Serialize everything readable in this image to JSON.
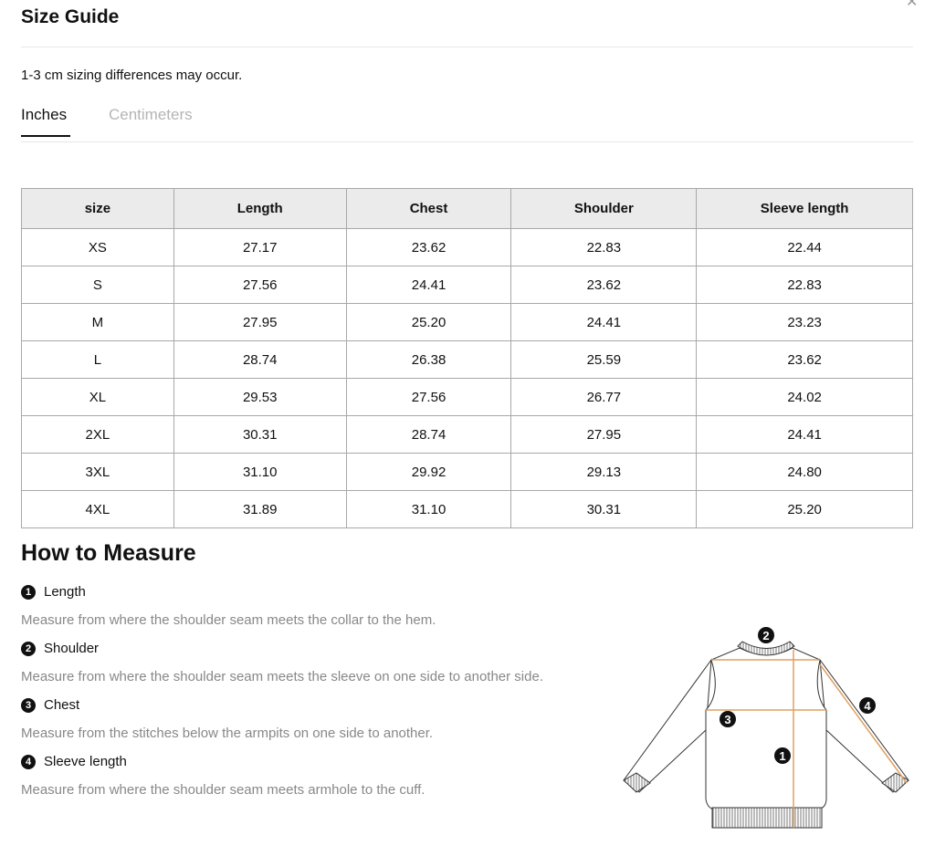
{
  "header": {
    "title": "Size Guide",
    "close_icon": "close-icon"
  },
  "note": "1-3 cm sizing differences may occur.",
  "tabs": [
    {
      "label": "Inches",
      "active": true
    },
    {
      "label": "Centimeters",
      "active": false
    }
  ],
  "table": {
    "headers": [
      "size",
      "Length",
      "Chest",
      "Shoulder",
      "Sleeve length"
    ],
    "rows": [
      [
        "XS",
        "27.17",
        "23.62",
        "22.83",
        "22.44"
      ],
      [
        "S",
        "27.56",
        "24.41",
        "23.62",
        "22.83"
      ],
      [
        "M",
        "27.95",
        "25.20",
        "24.41",
        "23.23"
      ],
      [
        "L",
        "28.74",
        "26.38",
        "25.59",
        "23.62"
      ],
      [
        "XL",
        "29.53",
        "27.56",
        "26.77",
        "24.02"
      ],
      [
        "2XL",
        "30.31",
        "28.74",
        "27.95",
        "24.41"
      ],
      [
        "3XL",
        "31.10",
        "29.92",
        "29.13",
        "24.80"
      ],
      [
        "4XL",
        "31.89",
        "31.10",
        "30.31",
        "25.20"
      ]
    ]
  },
  "measure": {
    "title": "How to Measure",
    "items": [
      {
        "num": "1",
        "label": "Length",
        "desc": "Measure from where the shoulder seam meets the collar to the hem."
      },
      {
        "num": "2",
        "label": "Shoulder",
        "desc": "Measure from where the shoulder seam meets the sleeve on one side to another side."
      },
      {
        "num": "3",
        "label": "Chest",
        "desc": "Measure from the stitches below the armpits on one side to another."
      },
      {
        "num": "4",
        "label": "Sleeve length",
        "desc": "Measure from where the shoulder seam meets armhole to the cuff."
      }
    ]
  },
  "colors": {
    "measure_line": "#e0a060",
    "header_bg": "#ebebeb"
  }
}
